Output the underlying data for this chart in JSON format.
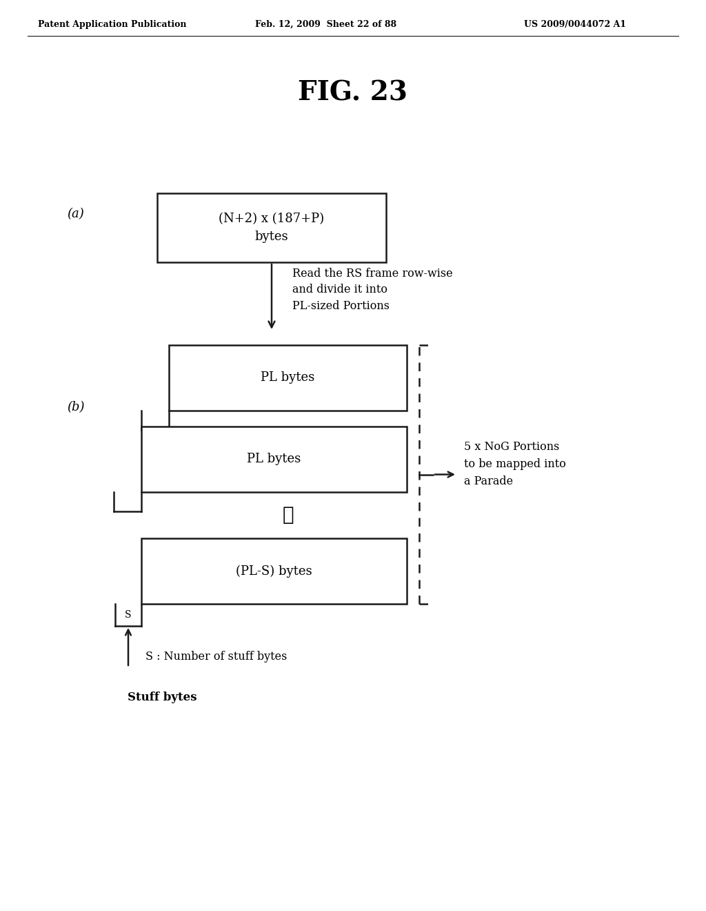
{
  "header_left": "Patent Application Publication",
  "header_mid": "Feb. 12, 2009  Sheet 22 of 88",
  "header_right": "US 2009/0044072 A1",
  "fig_title": "FIG. 23",
  "label_a": "(a)",
  "label_b": "(b)",
  "box_a_text": "(N+2) x (187+P)\nbytes",
  "arrow_label": "Read the RS frame row-wise\nand divide it into\nPL-sized Portions",
  "box_pl1_text": "PL bytes",
  "box_pl2_text": "PL bytes",
  "dots": "⋮",
  "box_pls_text": "(PL-S) bytes",
  "box_s_text": "S",
  "brace_label": "5 x NoG Portions\nto be mapped into\na Parade",
  "arrow_s_label": "S : Number of stuff bytes",
  "stuff_bytes_label": "Stuff bytes",
  "bg_color": "#ffffff",
  "line_color": "#1a1a1a"
}
